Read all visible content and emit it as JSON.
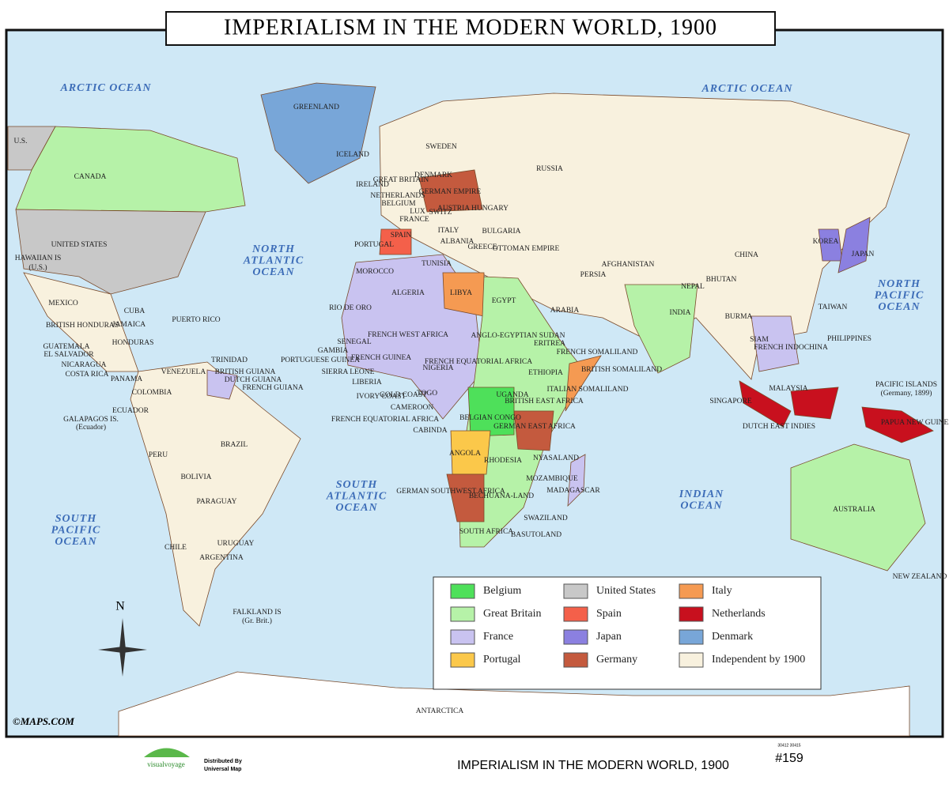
{
  "title": "IMPERIALISM IN THE MODERN WORLD, 1900",
  "oceans": [
    [
      "ARCTIC OCEAN"
    ],
    [
      "ARCTIC OCEAN"
    ],
    [
      "NORTH",
      "ATLANTIC",
      "OCEAN"
    ],
    [
      "NORTH",
      "PACIFIC",
      "OCEAN"
    ],
    [
      "SOUTH",
      "ATLANTIC",
      "OCEAN"
    ],
    [
      "SOUTH",
      "PACIFIC",
      "OCEAN"
    ],
    [
      "INDIAN",
      "OCEAN"
    ]
  ],
  "labels": [
    "GREENLAND",
    "ICELAND",
    "U.S.",
    "CANADA",
    "UNITED STATES",
    "HAWAIIAN IS",
    "(U.S.)",
    "MEXICO",
    "CUBA",
    "PUERTO RICO",
    "BRITISH HONDURAS",
    "JAMAICA",
    "HONDURAS",
    "GUATEMALA",
    "EL SALVADOR",
    "NICARAGUA",
    "COSTA RICA",
    "PANAMA",
    "TRINIDAD",
    "VENEZUELA",
    "BRITISH GUIANA",
    "DUTCH GUIANA",
    "FRENCH GUIANA",
    "COLOMBIA",
    "ECUADOR",
    "GALAPAGOS IS.",
    "(Ecuador)",
    "PERU",
    "BRAZIL",
    "BOLIVIA",
    "PARAGUAY",
    "CHILE",
    "URUGUAY",
    "ARGENTINA",
    "FALKLAND IS",
    "(Gr. Brit.)",
    "SWEDEN",
    "RUSSIA",
    "IRELAND",
    "GREAT BRITAIN",
    "DENMARK",
    "NETHERLANDS",
    "BELGIUM",
    "GERMAN EMPIRE",
    "LUX",
    "FRANCE",
    "SWITZ",
    "AUSTRIA HUNGARY",
    "ITALY",
    "BULGARIA",
    "SPAIN",
    "PORTUGAL",
    "ALBANIA",
    "GREECE",
    "OTTOMAN EMPIRE",
    "TUNISIA",
    "MOROCCO",
    "ALGERIA",
    "LIBYA",
    "EGYPT",
    "RIO DE ORO",
    "PERSIA",
    "AFGHANISTAN",
    "CHINA",
    "KOREA",
    "JAPAN",
    "NEPAL",
    "BHUTAN",
    "INDIA",
    "ARABIA",
    "TAIWAN",
    "BURMA",
    "SIAM",
    "FRENCH INDOCHINA",
    "PHILIPPINES",
    "FRENCH WEST AFRICA",
    "ANGLO-EGYPTIAN SUDAN",
    "ERITREA",
    "SENEGAL",
    "GAMBIA",
    "FRENCH GUINEA",
    "PORTUGUESE GUINEA",
    "FRENCH EQUATORIAL AFRICA",
    "FRENCH SOMALILAND",
    "BRITISH SOMALILAND",
    "NIGERIA",
    "ETHIOPIA",
    "SIERRA LEONE",
    "LIBERIA",
    "IVORY COAST",
    "GOLD COAST",
    "TOGO",
    "UGANDA",
    "BRITISH EAST AFRICA",
    "ITALIAN SOMALILAND",
    "CAMEROON",
    "FRENCH EQUATORIAL AFRICA",
    "BELGIAN CONGO",
    "CABINDA",
    "GERMAN EAST AFRICA",
    "ANGOLA",
    "RHODESIA",
    "NYASALAND",
    "MOZAMBIQUE",
    "MADAGASCAR",
    "GERMAN SOUTHWEST AFRICA",
    "BECHUANA-LAND",
    "SWAZILAND",
    "SOUTH AFRICA",
    "BASUTOLAND",
    "MALAYSIA",
    "SINGAPORE",
    "DUTCH EAST INDIES",
    "PACIFIC ISLANDS",
    "(Germany, 1899)",
    "PAPUA NEW GUINEA",
    "AUSTRALIA",
    "NEW ZEALAND",
    "ANTARCTICA"
  ],
  "legend": [
    {
      "name": "Belgium",
      "color": "#4ee05a"
    },
    {
      "name": "Great Britain",
      "color": "#b6f2a8"
    },
    {
      "name": "France",
      "color": "#c9c3f0"
    },
    {
      "name": "Portugal",
      "color": "#fbc84a"
    },
    {
      "name": "United States",
      "color": "#c8c8c8"
    },
    {
      "name": "Spain",
      "color": "#f4604a"
    },
    {
      "name": "Japan",
      "color": "#8b80e0"
    },
    {
      "name": "Germany",
      "color": "#c45a3e"
    },
    {
      "name": "Italy",
      "color": "#f59a52"
    },
    {
      "name": "Netherlands",
      "color": "#c8101e"
    },
    {
      "name": "Denmark",
      "color": "#78a6d8"
    },
    {
      "name": "Independent by 1900",
      "color": "#f8f1de"
    }
  ],
  "compass": "N",
  "copyright": "©MAPS.COM",
  "brand": "visualvoyage",
  "distributed": [
    "Distributed By",
    "Universal Map"
  ],
  "codes": "30412 30415",
  "footer_title": "IMPERIALISM IN THE MODERN WORLD, 1900",
  "number": "#159"
}
